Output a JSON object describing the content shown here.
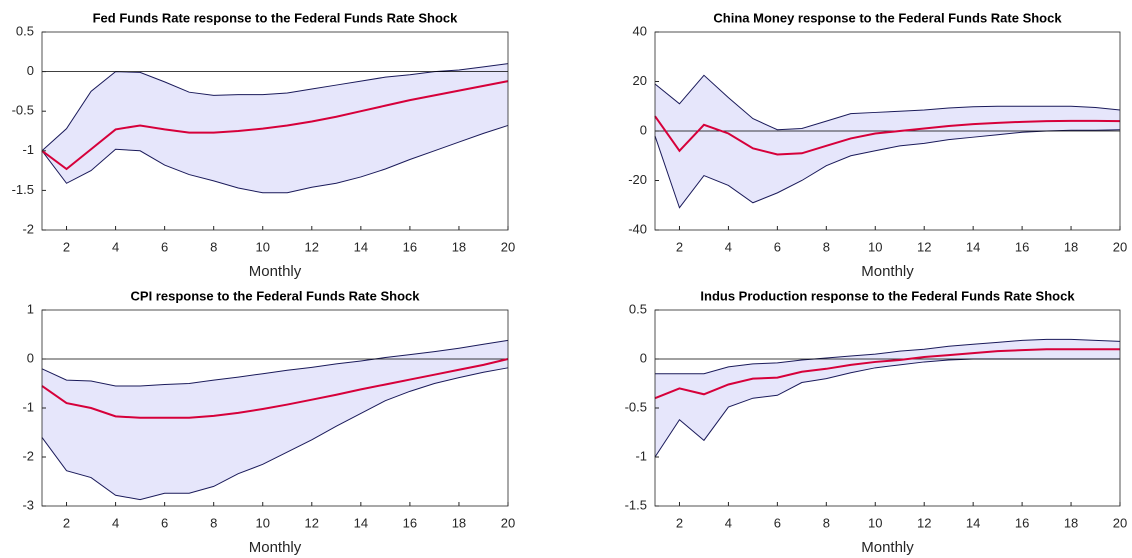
{
  "chart_data": [
    {
      "type": "line",
      "title": "Fed Funds Rate response to the Federal Funds Rate Shock",
      "xlabel": "Monthly",
      "x": [
        1,
        2,
        3,
        4,
        5,
        6,
        7,
        8,
        9,
        10,
        11,
        12,
        13,
        14,
        15,
        16,
        17,
        18,
        19,
        20
      ],
      "values": [
        -1.0,
        -1.23,
        -0.98,
        -0.73,
        -0.68,
        -0.73,
        -0.77,
        -0.77,
        -0.75,
        -0.72,
        -0.68,
        -0.63,
        -0.57,
        -0.5,
        -0.43,
        -0.36,
        -0.3,
        -0.24,
        -0.18,
        -0.12
      ],
      "band": {
        "upper": [
          -1.0,
          -0.72,
          -0.25,
          0.0,
          -0.01,
          -0.13,
          -0.26,
          -0.3,
          -0.29,
          -0.29,
          -0.27,
          -0.22,
          -0.17,
          -0.12,
          -0.07,
          -0.04,
          0.0,
          0.02,
          0.06,
          0.1
        ],
        "lower": [
          -1.0,
          -1.41,
          -1.25,
          -0.98,
          -1.0,
          -1.18,
          -1.3,
          -1.38,
          -1.47,
          -1.53,
          -1.53,
          -1.46,
          -1.41,
          -1.33,
          -1.23,
          -1.11,
          -1.0,
          -0.89,
          -0.78,
          -0.68
        ]
      },
      "color": "#d6003a",
      "band_color": "#e6e6fb",
      "band_line_color": "#1a1a5a",
      "hline": 0,
      "xlim": [
        1,
        20
      ],
      "xticks": [
        2,
        4,
        6,
        8,
        10,
        12,
        14,
        16,
        18,
        20
      ],
      "ylim": [
        -2,
        0.5
      ],
      "yticks": [
        -2,
        -1.5,
        -1,
        -0.5,
        0,
        0.5
      ]
    },
    {
      "type": "line",
      "title": "China Money response to the Federal Funds Rate Shock",
      "xlabel": "Monthly",
      "x": [
        1,
        2,
        3,
        4,
        5,
        6,
        7,
        8,
        9,
        10,
        11,
        12,
        13,
        14,
        15,
        16,
        17,
        18,
        19,
        20
      ],
      "values": [
        6,
        -8,
        2.5,
        -1,
        -7,
        -9.5,
        -9,
        -6,
        -3,
        -1,
        0,
        1,
        2,
        2.8,
        3.3,
        3.7,
        4,
        4.1,
        4.1,
        4
      ],
      "band": {
        "upper": [
          19,
          11,
          22.5,
          13.5,
          5,
          0.5,
          1,
          4,
          7,
          7.5,
          8,
          8.5,
          9.3,
          9.8,
          10,
          10,
          10,
          10,
          9.5,
          8.5
        ],
        "lower": [
          -2,
          -31,
          -18,
          -22,
          -29,
          -25,
          -20,
          -14,
          -10,
          -8,
          -6,
          -5,
          -3.5,
          -2.5,
          -1.5,
          -0.5,
          0,
          0.3,
          0.3,
          0.5
        ]
      },
      "color": "#d6003a",
      "band_color": "#e6e6fb",
      "band_line_color": "#1a1a5a",
      "hline": 0,
      "xlim": [
        1,
        20
      ],
      "xticks": [
        2,
        4,
        6,
        8,
        10,
        12,
        14,
        16,
        18,
        20
      ],
      "ylim": [
        -40,
        40
      ],
      "yticks": [
        -40,
        -20,
        0,
        20,
        40
      ]
    },
    {
      "type": "line",
      "title": "CPI response to the Federal Funds Rate Shock",
      "xlabel": "Monthly",
      "x": [
        1,
        2,
        3,
        4,
        5,
        6,
        7,
        8,
        9,
        10,
        11,
        12,
        13,
        14,
        15,
        16,
        17,
        18,
        19,
        20
      ],
      "values": [
        -0.55,
        -0.9,
        -1.0,
        -1.17,
        -1.2,
        -1.2,
        -1.2,
        -1.16,
        -1.1,
        -1.02,
        -0.93,
        -0.83,
        -0.73,
        -0.62,
        -0.52,
        -0.42,
        -0.32,
        -0.22,
        -0.12,
        0.0
      ],
      "band": {
        "upper": [
          -0.2,
          -0.43,
          -0.45,
          -0.55,
          -0.55,
          -0.52,
          -0.5,
          -0.43,
          -0.37,
          -0.3,
          -0.23,
          -0.17,
          -0.1,
          -0.04,
          0.03,
          0.09,
          0.15,
          0.22,
          0.3,
          0.38
        ],
        "lower": [
          -1.6,
          -2.28,
          -2.42,
          -2.78,
          -2.87,
          -2.74,
          -2.74,
          -2.6,
          -2.34,
          -2.15,
          -1.9,
          -1.65,
          -1.37,
          -1.11,
          -0.85,
          -0.66,
          -0.5,
          -0.38,
          -0.27,
          -0.18
        ]
      },
      "color": "#d6003a",
      "band_color": "#e6e6fb",
      "band_line_color": "#1a1a5a",
      "hline": 0,
      "xlim": [
        1,
        20
      ],
      "xticks": [
        2,
        4,
        6,
        8,
        10,
        12,
        14,
        16,
        18,
        20
      ],
      "ylim": [
        -3,
        1
      ],
      "yticks": [
        -3,
        -2,
        -1,
        0,
        1
      ]
    },
    {
      "type": "line",
      "title": "Indus Production response to the Federal Funds Rate Shock",
      "xlabel": "Monthly",
      "x": [
        1,
        2,
        3,
        4,
        5,
        6,
        7,
        8,
        9,
        10,
        11,
        12,
        13,
        14,
        15,
        16,
        17,
        18,
        19,
        20
      ],
      "values": [
        -0.4,
        -0.3,
        -0.36,
        -0.26,
        -0.2,
        -0.19,
        -0.13,
        -0.1,
        -0.06,
        -0.03,
        -0.01,
        0.02,
        0.04,
        0.06,
        0.08,
        0.09,
        0.1,
        0.1,
        0.1,
        0.1
      ],
      "band": {
        "upper": [
          -0.15,
          -0.15,
          -0.15,
          -0.08,
          -0.05,
          -0.04,
          -0.01,
          0.01,
          0.03,
          0.05,
          0.08,
          0.1,
          0.13,
          0.15,
          0.17,
          0.19,
          0.2,
          0.2,
          0.19,
          0.18
        ],
        "lower": [
          -1.0,
          -0.62,
          -0.83,
          -0.49,
          -0.4,
          -0.37,
          -0.24,
          -0.2,
          -0.14,
          -0.09,
          -0.06,
          -0.03,
          -0.01,
          0.0,
          0.0,
          0.0,
          0.0,
          0.0,
          0.0,
          0.0
        ]
      },
      "color": "#d6003a",
      "band_color": "#e6e6fb",
      "band_line_color": "#1a1a5a",
      "hline": 0,
      "xlim": [
        1,
        20
      ],
      "xticks": [
        2,
        4,
        6,
        8,
        10,
        12,
        14,
        16,
        18,
        20
      ],
      "ylim": [
        -1.5,
        0.5
      ],
      "yticks": [
        -1.5,
        -1,
        -0.5,
        0,
        0.5
      ]
    }
  ]
}
